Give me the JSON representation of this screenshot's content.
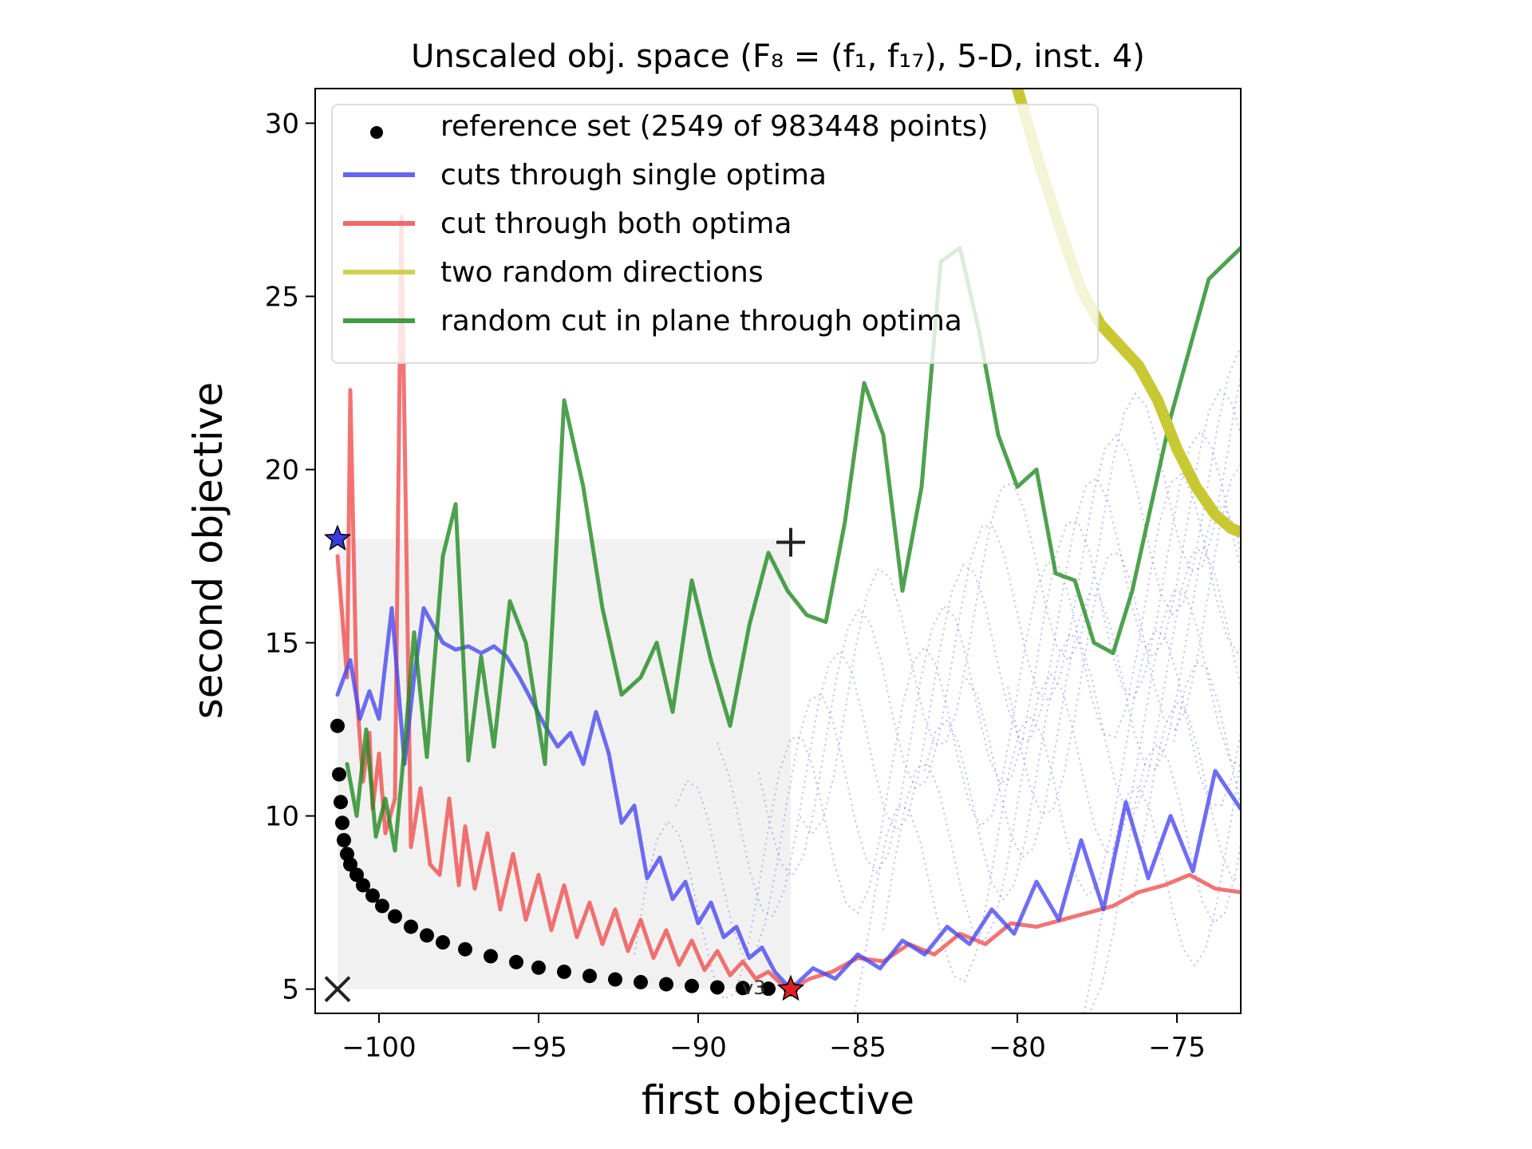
{
  "chart_data": {
    "type": "line",
    "title": "Unscaled obj. space (F₈ = (f₁, f₁₇), 5-D, inst. 4)",
    "xlabel": "first objective",
    "ylabel": "second objective",
    "xlim": [
      -102,
      -73
    ],
    "ylim": [
      4.3,
      31
    ],
    "x_ticks": [
      -100,
      -95,
      -90,
      -85,
      -80,
      -75
    ],
    "x_tick_labels": [
      "−100",
      "−95",
      "−90",
      "−85",
      "−80",
      "−75"
    ],
    "y_ticks": [
      5,
      10,
      15,
      20,
      25,
      30
    ],
    "y_tick_labels": [
      "5",
      "10",
      "15",
      "20",
      "25",
      "30"
    ],
    "grid": false,
    "legend_position": "top-left",
    "legend": [
      {
        "label": "reference set (2549 of 983448 points)",
        "marker": "dot",
        "color": "#000000"
      },
      {
        "label": "cuts through single optima",
        "color": "#4a4af0"
      },
      {
        "label": "cut through both optima",
        "color": "#f05050"
      },
      {
        "label": "two random directions",
        "color": "#c8c832"
      },
      {
        "label": "random cut in plane through optima",
        "color": "#228b22"
      }
    ],
    "annotation": "v3",
    "markers": {
      "ideal": {
        "symbol": "×",
        "x": -101.3,
        "y": 5.0
      },
      "nadir": {
        "symbol": "+",
        "x": -87.1,
        "y": 17.9
      },
      "optimum1": {
        "symbol": "★",
        "x": -101.3,
        "y": 18.0
      },
      "optimum2": {
        "symbol": "★",
        "x": -87.1,
        "y": 5.0
      }
    },
    "shaded_region": {
      "x": [
        -101.3,
        -87.1
      ],
      "y": [
        5.0,
        18.0
      ]
    },
    "reference_set": {
      "x": [
        -101.3,
        -101.25,
        -101.2,
        -101.15,
        -101.1,
        -101.0,
        -100.9,
        -100.7,
        -100.5,
        -100.2,
        -99.9,
        -99.5,
        -99.0,
        -98.5,
        -98.0,
        -97.3,
        -96.5,
        -95.7,
        -95.0,
        -94.2,
        -93.4,
        -92.6,
        -91.8,
        -91.0,
        -90.2,
        -89.4,
        -88.6,
        -87.8,
        -87.1
      ],
      "y": [
        12.6,
        11.2,
        10.4,
        9.8,
        9.3,
        8.9,
        8.6,
        8.3,
        8.0,
        7.7,
        7.4,
        7.1,
        6.8,
        6.55,
        6.35,
        6.15,
        5.95,
        5.78,
        5.62,
        5.5,
        5.38,
        5.28,
        5.2,
        5.14,
        5.09,
        5.05,
        5.03,
        5.01,
        5.0
      ]
    },
    "series": [
      {
        "name": "cut through both optima",
        "x": [
          -101.3,
          -101.0,
          -100.9,
          -100.7,
          -100.5,
          -100.3,
          -100.2,
          -100.0,
          -99.8,
          -99.5,
          -99.3,
          -99.0,
          -98.7,
          -98.4,
          -98.1,
          -97.8,
          -97.5,
          -97.3,
          -97.0,
          -96.6,
          -96.2,
          -95.8,
          -95.4,
          -95.0,
          -94.6,
          -94.2,
          -93.8,
          -93.4,
          -93.0,
          -92.6,
          -92.2,
          -91.8,
          -91.4,
          -91.0,
          -90.6,
          -90.2,
          -89.8,
          -89.4,
          -89.0,
          -88.6,
          -88.2,
          -87.8,
          -87.4,
          -87.1,
          -86.5,
          -85.8,
          -85.0,
          -84.2,
          -83.4,
          -82.6,
          -81.8,
          -81.0,
          -80.2,
          -79.4,
          -78.6,
          -77.8,
          -77.0,
          -76.2,
          -75.4,
          -74.6,
          -73.8,
          -73.0
        ],
        "y": [
          17.5,
          14.0,
          22.3,
          13.5,
          11.0,
          12.4,
          10.2,
          11.8,
          9.5,
          10.5,
          27.3,
          9.1,
          10.8,
          8.6,
          8.3,
          10.5,
          8.0,
          9.7,
          7.9,
          9.5,
          7.3,
          8.9,
          7.0,
          8.3,
          6.7,
          8.0,
          6.5,
          7.5,
          6.3,
          7.3,
          6.1,
          7.0,
          5.9,
          6.7,
          5.7,
          6.4,
          5.55,
          6.1,
          5.4,
          5.8,
          5.3,
          5.5,
          5.15,
          5.0,
          5.3,
          5.5,
          5.9,
          5.8,
          6.3,
          6.0,
          6.6,
          6.3,
          6.9,
          6.8,
          7.0,
          7.2,
          7.4,
          7.8,
          8.0,
          8.3,
          7.9,
          7.8
        ]
      },
      {
        "name": "cuts through single optima",
        "x": [
          -101.3,
          -100.9,
          -100.6,
          -100.3,
          -100.0,
          -99.6,
          -99.2,
          -98.9,
          -98.6,
          -98.3,
          -98.0,
          -97.6,
          -97.2,
          -96.8,
          -96.4,
          -96.0,
          -95.6,
          -95.2,
          -94.8,
          -94.4,
          -94.0,
          -93.6,
          -93.2,
          -92.8,
          -92.4,
          -92.0,
          -91.6,
          -91.2,
          -90.8,
          -90.4,
          -90.0,
          -89.6,
          -89.2,
          -88.8,
          -88.4,
          -88.0,
          -87.6,
          -87.1
        ],
        "y": [
          13.5,
          14.5,
          12.8,
          13.6,
          12.8,
          16.0,
          11.5,
          14.0,
          16.0,
          15.5,
          15.0,
          14.8,
          14.9,
          14.7,
          14.9,
          14.6,
          14.0,
          13.3,
          12.6,
          12.0,
          12.4,
          11.5,
          13.0,
          11.8,
          9.8,
          10.3,
          8.2,
          8.8,
          7.6,
          8.1,
          6.9,
          7.5,
          6.5,
          6.8,
          5.9,
          6.2,
          5.5,
          5.0
        ]
      },
      {
        "name": "cuts through single optima",
        "x": [
          -87.1,
          -86.4,
          -85.7,
          -85.0,
          -84.3,
          -83.6,
          -82.9,
          -82.2,
          -81.5,
          -80.8,
          -80.1,
          -79.4,
          -78.7,
          -78.0,
          -77.3,
          -76.6,
          -75.9,
          -75.2,
          -74.5,
          -73.8,
          -73.0
        ],
        "y": [
          5.0,
          5.6,
          5.3,
          6.0,
          5.6,
          6.4,
          6.0,
          6.8,
          6.3,
          7.3,
          6.6,
          8.1,
          7.0,
          9.3,
          7.3,
          10.4,
          8.2,
          10.0,
          8.4,
          11.3,
          10.2
        ]
      },
      {
        "name": "random cut in plane through optima",
        "x": [
          -101.0,
          -100.7,
          -100.4,
          -100.1,
          -99.8,
          -99.5,
          -99.2,
          -98.9,
          -98.5,
          -98.0,
          -97.6,
          -97.2,
          -96.8,
          -96.4,
          -95.9,
          -95.4,
          -94.8,
          -94.2,
          -93.6,
          -93.0,
          -92.4,
          -91.8,
          -91.3,
          -90.8,
          -90.2,
          -89.6,
          -89.0,
          -88.4,
          -87.8,
          -87.2,
          -86.6,
          -86.0,
          -85.4,
          -84.8,
          -84.2,
          -83.6,
          -83.0,
          -82.4,
          -81.8,
          -81.2,
          -80.6,
          -80.0,
          -79.4,
          -78.8,
          -78.2,
          -77.6,
          -77.0,
          -76.4,
          -75.8,
          -75.2,
          -74.6,
          -74.0,
          -73.0
        ],
        "y": [
          11.5,
          10.0,
          12.5,
          9.4,
          10.5,
          9.0,
          12.0,
          15.3,
          11.7,
          17.5,
          19.0,
          11.6,
          14.6,
          12.0,
          16.2,
          15.0,
          11.5,
          22.0,
          19.5,
          16.0,
          13.5,
          14.0,
          15.0,
          13.0,
          16.8,
          14.5,
          12.6,
          15.5,
          17.6,
          16.5,
          15.8,
          15.6,
          18.5,
          22.5,
          21.0,
          16.5,
          19.5,
          26.0,
          26.4,
          24.0,
          21.0,
          19.5,
          20.0,
          17.0,
          16.8,
          15.0,
          14.7,
          16.5,
          19.0,
          21.5,
          23.5,
          25.5,
          26.4
        ]
      },
      {
        "name": "two random directions",
        "x": [
          -80.0,
          -79.3,
          -78.6,
          -78.0,
          -77.4,
          -76.8,
          -76.2,
          -75.6,
          -75.0,
          -74.4,
          -73.8,
          -73.3,
          -73.0
        ],
        "y": [
          31.0,
          28.8,
          26.8,
          25.2,
          24.2,
          23.6,
          23.0,
          22.0,
          20.6,
          19.5,
          18.7,
          18.3,
          18.2
        ]
      }
    ]
  }
}
